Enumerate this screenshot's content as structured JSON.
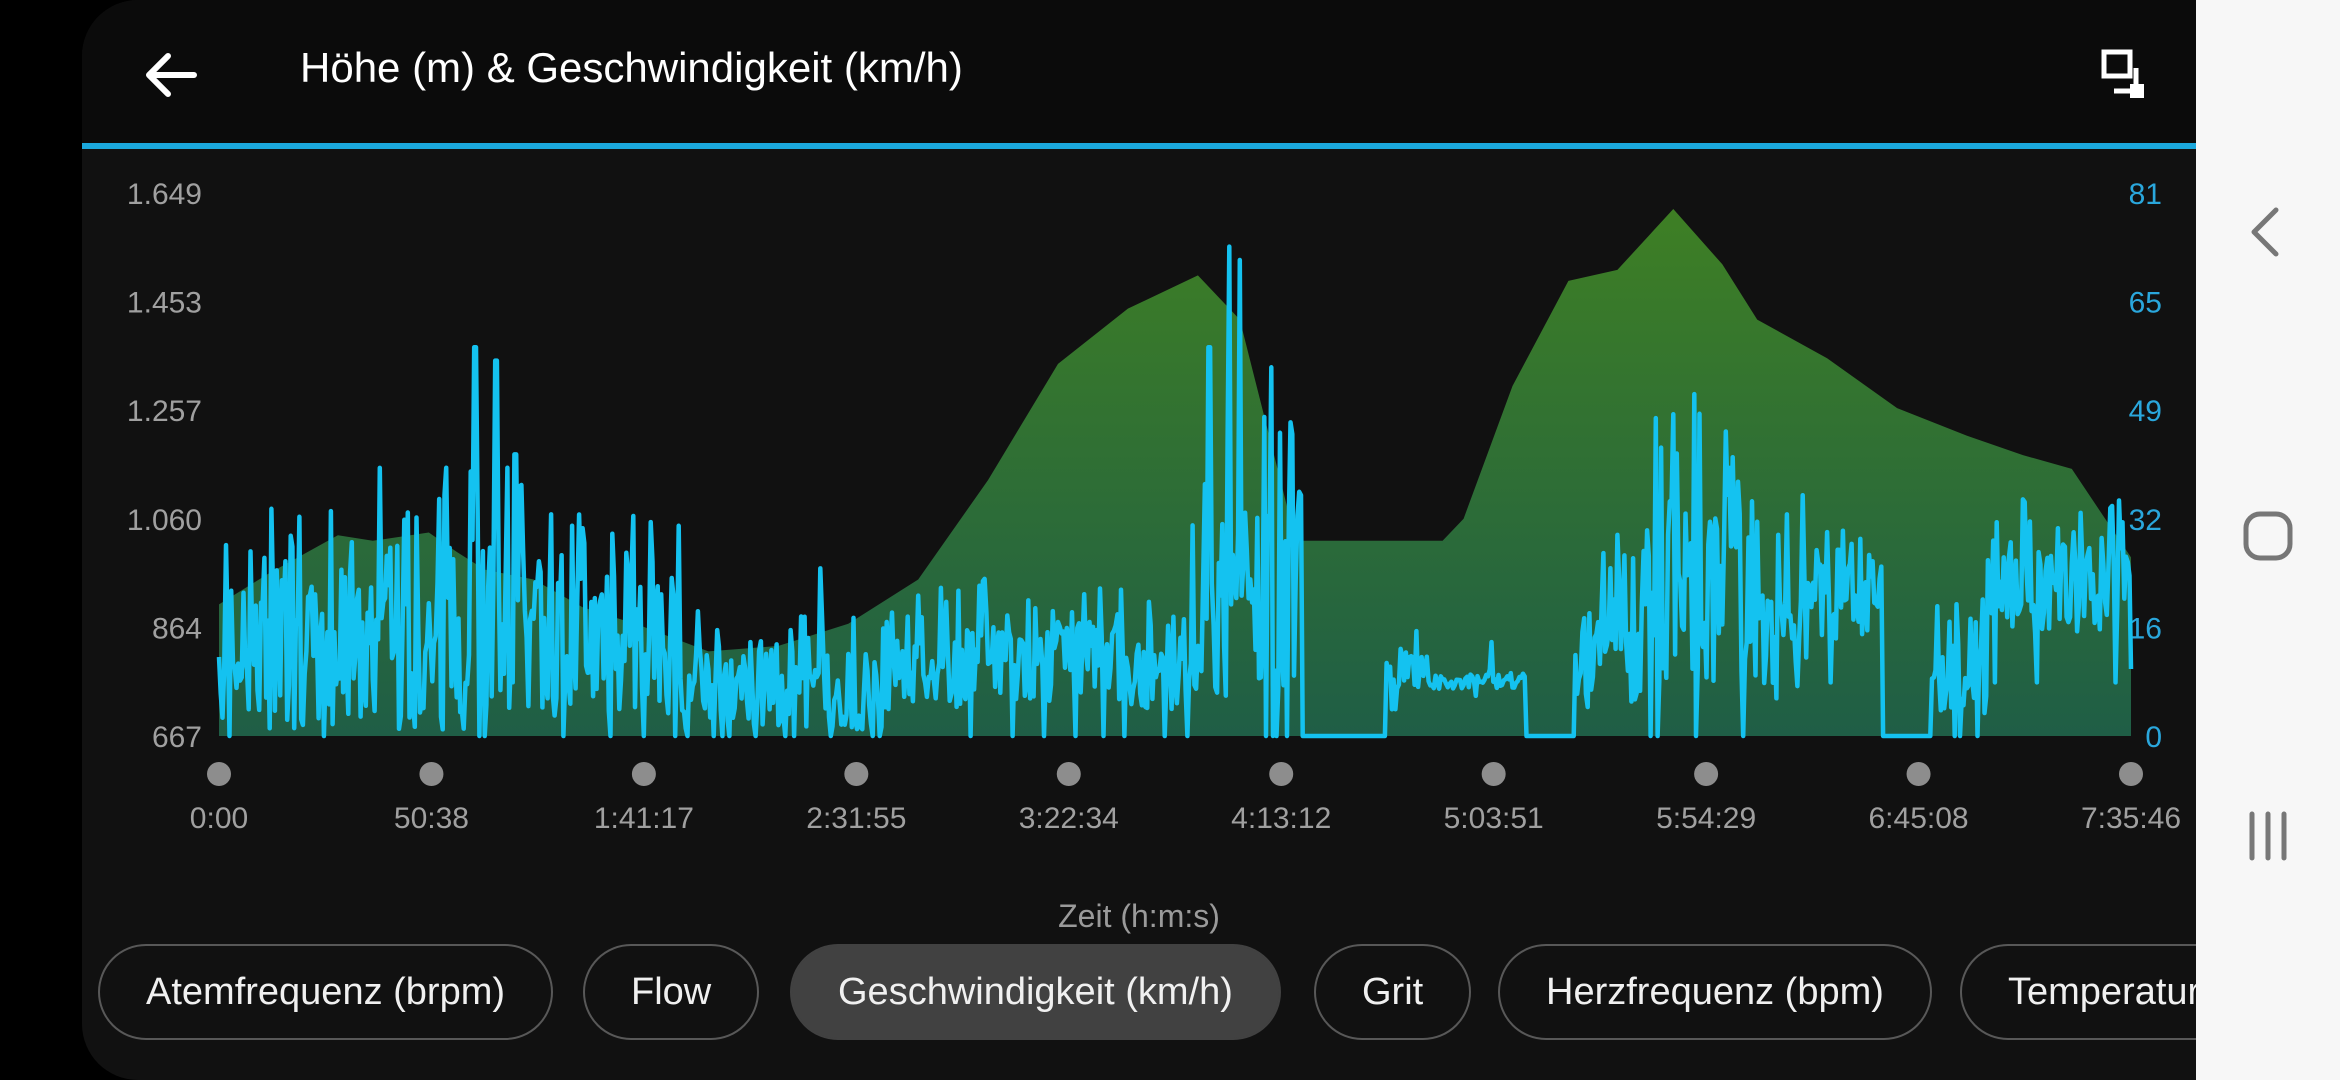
{
  "header": {
    "title": "Höhe (m) & Geschwindigkeit (km/h)",
    "back_icon": "arrow-left-icon",
    "expand_icon": "fullscreen-icon"
  },
  "colors": {
    "accent": "#1ba8dc",
    "speed_line": "#14c2f0",
    "elevation_top": "#3e7f24",
    "elevation_bottom": "#1f5e46",
    "left_axis": "#a0a0a0",
    "right_axis": "#2aa7dc"
  },
  "chart_data": {
    "type": "area",
    "title": "Höhe (m) & Geschwindigkeit (km/h)",
    "xlabel": "Zeit (h:m:s)",
    "x_ticks": [
      "0:00",
      "50:38",
      "1:41:17",
      "2:31:55",
      "3:22:34",
      "4:13:12",
      "5:03:51",
      "5:54:29",
      "6:45:08",
      "7:35:46"
    ],
    "x_range_s": [
      0,
      27346
    ],
    "y_left": {
      "label": "Höhe (m)",
      "ticks": [
        "667",
        "864",
        "1.060",
        "1.257",
        "1.453",
        "1.649"
      ],
      "range": [
        667,
        1649
      ]
    },
    "y_right": {
      "label": "Geschwindigkeit (km/h)",
      "ticks": [
        "0",
        "16",
        "32",
        "49",
        "65",
        "81"
      ],
      "range": [
        0,
        81
      ]
    },
    "grid": false,
    "series": [
      {
        "name": "Höhe (m)",
        "axis": "left",
        "style": "area",
        "x": [
          0,
          700,
          1700,
          2200,
          3000,
          3400,
          3800,
          4500,
          5200,
          6000,
          7000,
          8000,
          9000,
          10000,
          11000,
          12000,
          13000,
          14000,
          14600,
          15400,
          15900,
          16500,
          17000,
          17500,
          17800,
          18500,
          19300,
          20000,
          20800,
          21500,
          22000,
          23000,
          24000,
          25000,
          25800,
          26500,
          27346
        ],
        "y": [
          905,
          960,
          1030,
          1020,
          1035,
          1000,
          968,
          950,
          900,
          868,
          820,
          830,
          870,
          950,
          1130,
          1340,
          1440,
          1500,
          1420,
          1020,
          1020,
          1020,
          1020,
          1020,
          1060,
          1300,
          1490,
          1510,
          1620,
          1520,
          1420,
          1350,
          1260,
          1210,
          1175,
          1150,
          990
        ]
      },
      {
        "name": "Geschwindigkeit (km/h)",
        "axis": "right",
        "style": "line",
        "segments": [
          {
            "from": 0,
            "to": 2700,
            "base": 12,
            "amp": 11,
            "spikes": [
              [
                2300,
                40
              ],
              [
                2700,
                35
              ]
            ]
          },
          {
            "from": 2700,
            "to": 4400,
            "base": 15,
            "amp": 14,
            "spikes": [
              [
                3670,
                58
              ],
              [
                3960,
                56
              ],
              [
                4230,
                42
              ]
            ]
          },
          {
            "from": 4400,
            "to": 6600,
            "base": 14,
            "amp": 11,
            "spikes": [
              [
                5200,
                31
              ],
              [
                6200,
                26
              ]
            ]
          },
          {
            "from": 6600,
            "to": 9500,
            "base": 7,
            "amp": 6,
            "spikes": [
              [
                8600,
                25
              ]
            ]
          },
          {
            "from": 9500,
            "to": 11000,
            "base": 11,
            "amp": 7,
            "spikes": [
              [
                10400,
                20
              ]
            ]
          },
          {
            "from": 11000,
            "to": 13000,
            "base": 11,
            "amp": 6,
            "spikes": [
              [
                12000,
                17
              ],
              [
                12600,
                22
              ]
            ]
          },
          {
            "from": 13000,
            "to": 13900,
            "base": 9,
            "amp": 5,
            "spikes": [
              [
                13300,
                20
              ]
            ]
          },
          {
            "from": 13900,
            "to": 15500,
            "base": 20,
            "amp": 14,
            "spikes": [
              [
                14160,
                58
              ],
              [
                14450,
                73
              ],
              [
                14600,
                71
              ],
              [
                15050,
                55
              ]
            ]
          },
          {
            "from": 15500,
            "to": 16700,
            "base": 0,
            "amp": 0,
            "spikes": []
          },
          {
            "from": 16700,
            "to": 17300,
            "base": 10,
            "amp": 3,
            "spikes": [
              [
                16900,
                13
              ]
            ]
          },
          {
            "from": 17300,
            "to": 18700,
            "base": 8,
            "amp": 1,
            "spikes": [
              [
                18200,
                14
              ]
            ]
          },
          {
            "from": 18700,
            "to": 19400,
            "base": 0,
            "amp": 0,
            "spikes": []
          },
          {
            "from": 19400,
            "to": 20400,
            "base": 12,
            "amp": 8,
            "spikes": [
              [
                20000,
                30
              ]
            ]
          },
          {
            "from": 20400,
            "to": 22000,
            "base": 22,
            "amp": 14,
            "spikes": [
              [
                20800,
                48
              ],
              [
                21100,
                51
              ],
              [
                21600,
                40
              ]
            ]
          },
          {
            "from": 22000,
            "to": 23000,
            "base": 15,
            "amp": 11,
            "spikes": [
              [
                22300,
                30
              ]
            ]
          },
          {
            "from": 23000,
            "to": 23800,
            "base": 20,
            "amp": 6,
            "spikes": [
              [
                23300,
                25
              ]
            ]
          },
          {
            "from": 23800,
            "to": 24500,
            "base": 0,
            "amp": 0,
            "spikes": []
          },
          {
            "from": 24500,
            "to": 25300,
            "base": 12,
            "amp": 9,
            "spikes": []
          },
          {
            "from": 25300,
            "to": 27346,
            "base": 22,
            "amp": 7,
            "spikes": [
              [
                25900,
                32
              ],
              [
                26300,
                31
              ],
              [
                27200,
                28
              ]
            ]
          }
        ]
      }
    ]
  },
  "metrics": [
    {
      "label": "Atemfrequenz (brpm)",
      "active": false
    },
    {
      "label": "Flow",
      "active": false
    },
    {
      "label": "Geschwindigkeit (km/h)",
      "active": true
    },
    {
      "label": "Grit",
      "active": false
    },
    {
      "label": "Herzfrequenz (bpm)",
      "active": false
    },
    {
      "label": "Temperatur",
      "active": false
    }
  ],
  "navbar": {
    "back_icon": "chevron-left-icon",
    "home_icon": "home-icon",
    "recents_icon": "recent-apps-icon"
  }
}
